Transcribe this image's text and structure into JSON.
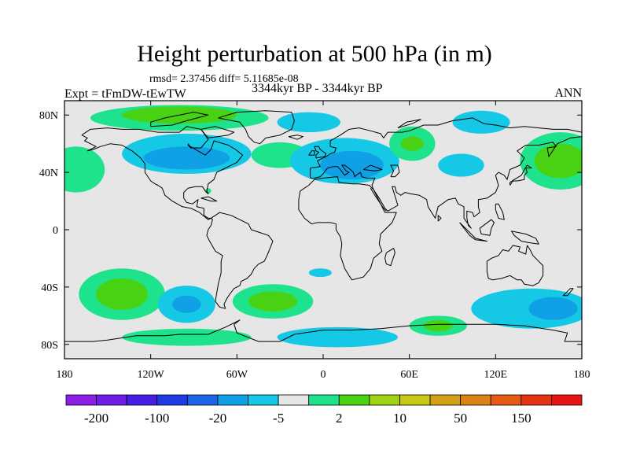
{
  "title": "Height perturbation at 500 hPa (in m)",
  "stats": "rmsd= 2.37456 diff= 5.11685e-08",
  "experiment": "Expt = tFmDW-tEwTW",
  "period": "3344kyr BP - 3344kyr BP",
  "season": "ANN",
  "colors": {
    "land_outline": "#000000",
    "neutral": "#e6e6e6",
    "pos1": "#1ee38c",
    "pos2": "#49d214",
    "neg1": "#14c8e6",
    "neg2": "#10a0e6",
    "neg3": "#1e64e6"
  },
  "map": {
    "projection": "cylindrical-equidistant",
    "lon_range": [
      -180,
      180
    ],
    "lat_range": [
      -90,
      90
    ],
    "lon_ticks": [
      {
        "value": -180,
        "label": "180"
      },
      {
        "value": -120,
        "label": "120W"
      },
      {
        "value": -60,
        "label": "60W"
      },
      {
        "value": 0,
        "label": "0"
      },
      {
        "value": 60,
        "label": "60E"
      },
      {
        "value": 120,
        "label": "120E"
      },
      {
        "value": 180,
        "label": "180"
      }
    ],
    "lat_ticks": [
      {
        "value": 80,
        "label": "80N"
      },
      {
        "value": 40,
        "label": "40N"
      },
      {
        "value": 0,
        "label": "0"
      },
      {
        "value": -40,
        "label": "40S"
      },
      {
        "value": -80,
        "label": "80S"
      }
    ]
  },
  "anomaly_regions": [
    {
      "name": "arctic-greenland",
      "lon": -100,
      "lat": 78,
      "rlon": 62,
      "rlat": 9,
      "level": "pos1"
    },
    {
      "name": "arctic-greenland-core",
      "lon": -100,
      "lat": 80,
      "rlon": 40,
      "rlat": 6,
      "level": "pos2"
    },
    {
      "name": "north-pacific-east",
      "lon": -172,
      "lat": 42,
      "rlon": 20,
      "rlat": 16,
      "level": "pos1"
    },
    {
      "name": "north-america",
      "lon": -95,
      "lat": 53,
      "rlon": 45,
      "rlat": 14,
      "level": "neg1"
    },
    {
      "name": "north-america-core",
      "lon": -95,
      "lat": 50,
      "rlon": 30,
      "rlat": 8,
      "level": "neg2"
    },
    {
      "name": "north-atlantic",
      "lon": -30,
      "lat": 52,
      "rlon": 20,
      "rlat": 9,
      "level": "pos1"
    },
    {
      "name": "europe",
      "lon": 15,
      "lat": 48,
      "rlon": 38,
      "rlat": 16,
      "level": "neg1"
    },
    {
      "name": "europe-core",
      "lon": 20,
      "lat": 45,
      "rlon": 22,
      "rlat": 10,
      "level": "neg2"
    },
    {
      "name": "north-atlantic-high",
      "lon": -10,
      "lat": 75,
      "rlon": 22,
      "rlat": 7,
      "level": "neg1"
    },
    {
      "name": "western-siberia",
      "lon": 62,
      "lat": 60,
      "rlon": 16,
      "rlat": 12,
      "level": "pos1"
    },
    {
      "name": "western-siberia-core",
      "lon": 62,
      "lat": 60,
      "rlon": 8,
      "rlat": 5,
      "level": "pos2"
    },
    {
      "name": "central-asia",
      "lon": 96,
      "lat": 45,
      "rlon": 16,
      "rlat": 8,
      "level": "neg1"
    },
    {
      "name": "arctic-siberia",
      "lon": 110,
      "lat": 75,
      "rlon": 20,
      "rlat": 8,
      "level": "neg1"
    },
    {
      "name": "north-pacific-west",
      "lon": 165,
      "lat": 48,
      "rlon": 28,
      "rlat": 20,
      "level": "pos1"
    },
    {
      "name": "north-pacific-west-core",
      "lon": 165,
      "lat": 48,
      "rlon": 18,
      "rlat": 12,
      "level": "pos2"
    },
    {
      "name": "south-pacific-west",
      "lon": -140,
      "lat": -45,
      "rlon": 30,
      "rlat": 18,
      "level": "pos1"
    },
    {
      "name": "south-pacific-west-core",
      "lon": -140,
      "lat": -45,
      "rlon": 18,
      "rlat": 11,
      "level": "pos2"
    },
    {
      "name": "south-pacific-east",
      "lon": -95,
      "lat": -52,
      "rlon": 20,
      "rlat": 13,
      "level": "neg1"
    },
    {
      "name": "south-pacific-east-core",
      "lon": -95,
      "lat": -52,
      "rlon": 10,
      "rlat": 6,
      "level": "neg2"
    },
    {
      "name": "south-atlantic",
      "lon": -35,
      "lat": -50,
      "rlon": 28,
      "rlat": 12,
      "level": "pos1"
    },
    {
      "name": "south-atlantic-core",
      "lon": -35,
      "lat": -50,
      "rlon": 17,
      "rlat": 7,
      "level": "pos2"
    },
    {
      "name": "southern-ocean-s",
      "lon": -95,
      "lat": -75,
      "rlon": 45,
      "rlat": 6,
      "level": "pos1"
    },
    {
      "name": "antarctic-coast",
      "lon": 10,
      "lat": -75,
      "rlon": 42,
      "rlat": 7,
      "level": "neg1"
    },
    {
      "name": "south-atlantic-small",
      "lon": -2,
      "lat": -30,
      "rlon": 8,
      "rlat": 3,
      "level": "neg1"
    },
    {
      "name": "southern-indian",
      "lon": 80,
      "lat": -67,
      "rlon": 20,
      "rlat": 7,
      "level": "pos1"
    },
    {
      "name": "southern-indian-core",
      "lon": 80,
      "lat": -67,
      "rlon": 10,
      "rlat": 4,
      "level": "pos2"
    },
    {
      "name": "south-pacific-australia",
      "lon": 145,
      "lat": -55,
      "rlon": 42,
      "rlat": 14,
      "level": "neg1"
    },
    {
      "name": "south-pacific-australia-core",
      "lon": 160,
      "lat": -55,
      "rlon": 17,
      "rlat": 8,
      "level": "neg2"
    },
    {
      "name": "florida-spot",
      "lon": -80,
      "lat": 27,
      "rlon": 2,
      "rlat": 2,
      "level": "pos1"
    }
  ],
  "colorbar": {
    "colors": [
      "#8c1ee6",
      "#6e1ee6",
      "#461ee6",
      "#1e3ce6",
      "#1e64e6",
      "#10a0e6",
      "#14c8e6",
      "#e6e6e6",
      "#1ee38c",
      "#49d214",
      "#a0d214",
      "#c8c814",
      "#d2a014",
      "#dc8214",
      "#e65a14",
      "#e63214",
      "#e61414"
    ],
    "labels": [
      {
        "boundary": 1,
        "text": "-200"
      },
      {
        "boundary": 3,
        "text": "-100"
      },
      {
        "boundary": 5,
        "text": "-20"
      },
      {
        "boundary": 7,
        "text": "-5"
      },
      {
        "boundary": 9,
        "text": "2"
      },
      {
        "boundary": 11,
        "text": "10"
      },
      {
        "boundary": 13,
        "text": "50"
      },
      {
        "boundary": 15,
        "text": "150"
      }
    ]
  }
}
